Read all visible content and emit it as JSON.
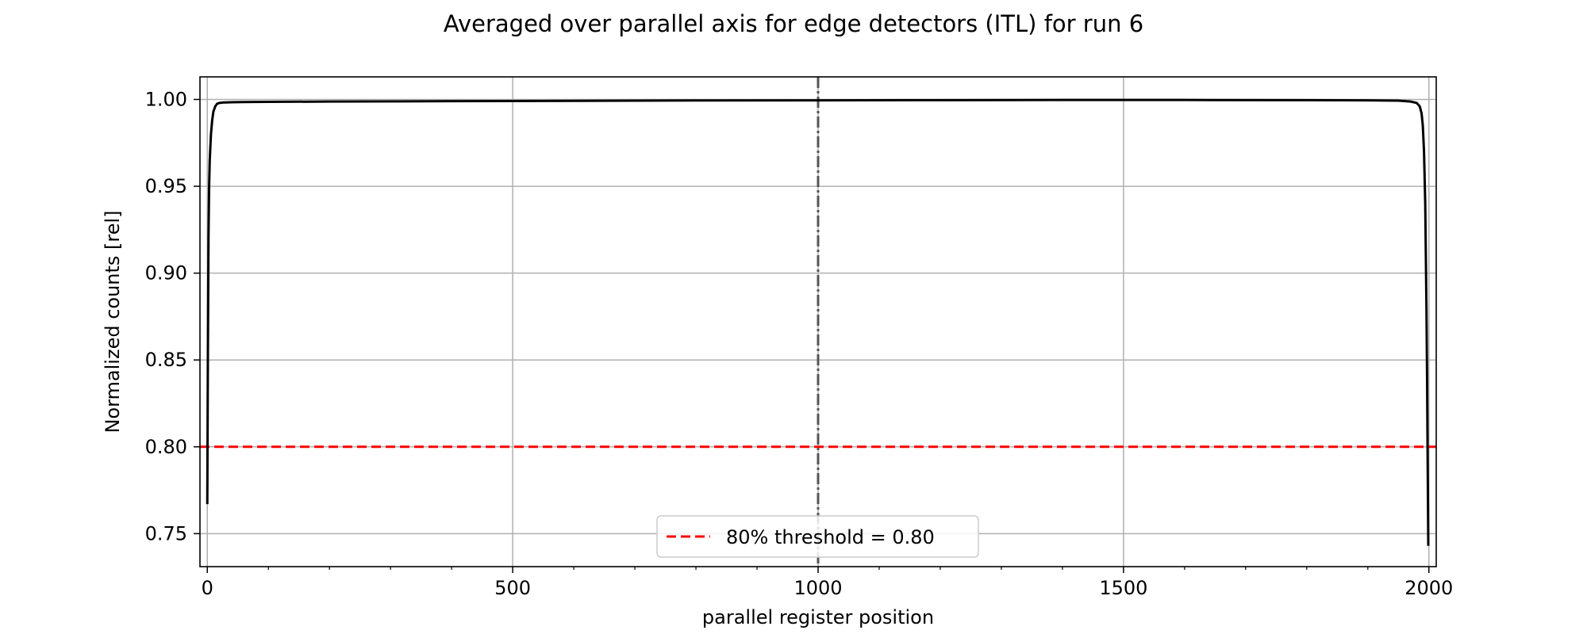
{
  "chart_data": {
    "type": "line",
    "title": "Averaged over parallel axis for edge detectors (ITL) for run 6",
    "xlabel": "parallel register position",
    "ylabel": "Normalized counts [rel]",
    "xlim": [
      -12,
      2012
    ],
    "ylim": [
      0.731,
      1.013
    ],
    "x_ticks": [
      0,
      500,
      1000,
      1500,
      2000
    ],
    "y_ticks": [
      0.75,
      0.8,
      0.85,
      0.9,
      0.95,
      1.0
    ],
    "y_tick_labels": [
      "0.75",
      "0.80",
      "0.85",
      "0.90",
      "0.95",
      "1.00"
    ],
    "grid": true,
    "legend_position": "bottom-center",
    "series": [
      {
        "color": "#000000",
        "x": [
          0,
          1,
          2,
          3,
          4,
          6,
          8,
          10,
          13,
          16,
          20,
          25,
          30,
          40,
          60,
          100,
          200,
          400,
          600,
          800,
          1000,
          1200,
          1400,
          1600,
          1800,
          1900,
          1950,
          1970,
          1980,
          1985,
          1988,
          1990,
          1992,
          1994,
          1996,
          1997,
          1998,
          1999
        ],
        "y": [
          0.767,
          0.855,
          0.922,
          0.95,
          0.965,
          0.98,
          0.988,
          0.993,
          0.996,
          0.9975,
          0.998,
          0.9982,
          0.9983,
          0.9984,
          0.9985,
          0.9986,
          0.9988,
          0.999,
          0.9992,
          0.9994,
          0.9995,
          0.9996,
          0.9997,
          0.9997,
          0.9996,
          0.9995,
          0.9993,
          0.9988,
          0.998,
          0.996,
          0.992,
          0.985,
          0.97,
          0.94,
          0.88,
          0.84,
          0.79,
          0.743
        ]
      }
    ],
    "threshold": {
      "value": 0.8,
      "label": "80% threshold = 0.80",
      "color": "#ff0000"
    },
    "center_line": {
      "x": 1000,
      "color": "#555555"
    }
  }
}
